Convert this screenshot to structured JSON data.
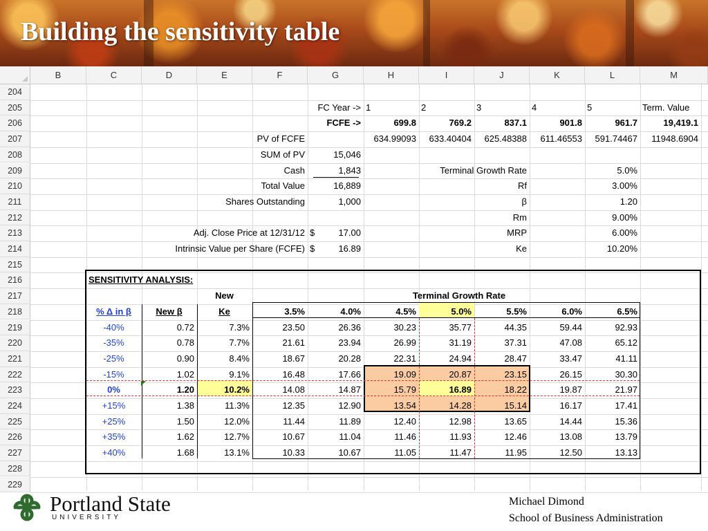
{
  "slide": {
    "title": "Building the sensitivity table",
    "footer": {
      "org_name": "Portland State",
      "org_sub": "UNIVERSITY",
      "author": "Michael Dimond",
      "department": "School of Business Administration"
    }
  },
  "sheet": {
    "columns": [
      "B",
      "C",
      "D",
      "E",
      "F",
      "G",
      "H",
      "I",
      "J",
      "K",
      "L",
      "M"
    ],
    "rows": [
      "204",
      "205",
      "206",
      "207",
      "208",
      "209",
      "210",
      "211",
      "212",
      "213",
      "214",
      "215",
      "216",
      "217",
      "218",
      "219",
      "220",
      "221",
      "222",
      "223",
      "224",
      "225",
      "226",
      "227",
      "228",
      "229"
    ],
    "fc_year_label": "FC Year ->",
    "fc_years": [
      "1",
      "2",
      "3",
      "4",
      "5"
    ],
    "terminal_value_label": "Term. Value",
    "fcfe_label": "FCFE ->",
    "fcfe_values": [
      "699.8",
      "769.2",
      "837.1",
      "901.8",
      "961.7",
      "19,419.1"
    ],
    "pv_label": "PV of FCFE",
    "pv_values": [
      "634.99093",
      "633.40404",
      "625.48388",
      "611.46553",
      "591.74467",
      "11948.6904"
    ],
    "summary": [
      {
        "label": "SUM of PV",
        "value": "15,046",
        "dollar": ""
      },
      {
        "label": "Cash",
        "value": "1,843",
        "dollar": ""
      },
      {
        "label": "Total Value",
        "value": "16,889",
        "dollar": ""
      },
      {
        "label": "Shares Outstanding",
        "value": "1,000",
        "dollar": ""
      },
      {
        "label": "",
        "value": "",
        "dollar": ""
      },
      {
        "label": "Adj. Close Price at 12/31/12",
        "value": "17.00",
        "dollar": "$"
      },
      {
        "label": "Intrinsic Value per Share (FCFE)",
        "value": "16.89",
        "dollar": "$"
      }
    ],
    "assumptions": [
      {
        "label": "Terminal Growth Rate",
        "value": "5.0%"
      },
      {
        "label": "Rf",
        "value": "3.00%"
      },
      {
        "label": "β",
        "value": "1.20"
      },
      {
        "label": "Rm",
        "value": "9.00%"
      },
      {
        "label": "MRP",
        "value": "6.00%"
      },
      {
        "label": "Ke",
        "value": "10.20%"
      }
    ]
  },
  "sensitivity": {
    "title": "SENSITIVITY ANALYSIS:",
    "new_label": "New",
    "tgr_label": "Terminal Growth Rate",
    "col_headers": [
      "% Δ in β",
      "New β",
      "Ke"
    ],
    "growth_rates": [
      "3.5%",
      "4.0%",
      "4.5%",
      "5.0%",
      "5.5%",
      "6.0%",
      "6.5%"
    ],
    "rows": [
      {
        "delta": "-40%",
        "beta": "0.72",
        "ke": "7.3%",
        "values": [
          "23.50",
          "26.36",
          "30.23",
          "35.77",
          "44.35",
          "59.44",
          "92.93"
        ]
      },
      {
        "delta": "-35%",
        "beta": "0.78",
        "ke": "7.7%",
        "values": [
          "21.61",
          "23.94",
          "26.99",
          "31.19",
          "37.31",
          "47.08",
          "65.12"
        ]
      },
      {
        "delta": "-25%",
        "beta": "0.90",
        "ke": "8.4%",
        "values": [
          "18.67",
          "20.28",
          "22.31",
          "24.94",
          "28.47",
          "33.47",
          "41.11"
        ]
      },
      {
        "delta": "-15%",
        "beta": "1.02",
        "ke": "9.1%",
        "values": [
          "16.48",
          "17.66",
          "19.09",
          "20.87",
          "23.15",
          "26.15",
          "30.30"
        ]
      },
      {
        "delta": "0%",
        "beta": "1.20",
        "ke": "10.2%",
        "values": [
          "14.08",
          "14.87",
          "15.79",
          "16.89",
          "18.22",
          "19.87",
          "21.97"
        ]
      },
      {
        "delta": "+15%",
        "beta": "1.38",
        "ke": "11.3%",
        "values": [
          "12.35",
          "12.90",
          "13.54",
          "14.28",
          "15.14",
          "16.17",
          "17.41"
        ]
      },
      {
        "delta": "+25%",
        "beta": "1.50",
        "ke": "12.0%",
        "values": [
          "11.44",
          "11.89",
          "12.40",
          "12.98",
          "13.65",
          "14.44",
          "15.36"
        ]
      },
      {
        "delta": "+35%",
        "beta": "1.62",
        "ke": "12.7%",
        "values": [
          "10.67",
          "11.04",
          "11.46",
          "11.93",
          "12.46",
          "13.08",
          "13.79"
        ]
      },
      {
        "delta": "+40%",
        "beta": "1.68",
        "ke": "13.1%",
        "values": [
          "10.33",
          "10.67",
          "11.05",
          "11.47",
          "11.95",
          "12.50",
          "13.13"
        ]
      }
    ]
  },
  "colors": {
    "highlight_yellow": "#ffff99",
    "highlight_peach": "#fbcca2",
    "delta_blue": "#1f3fd8",
    "dashed_red": "#e03030"
  }
}
